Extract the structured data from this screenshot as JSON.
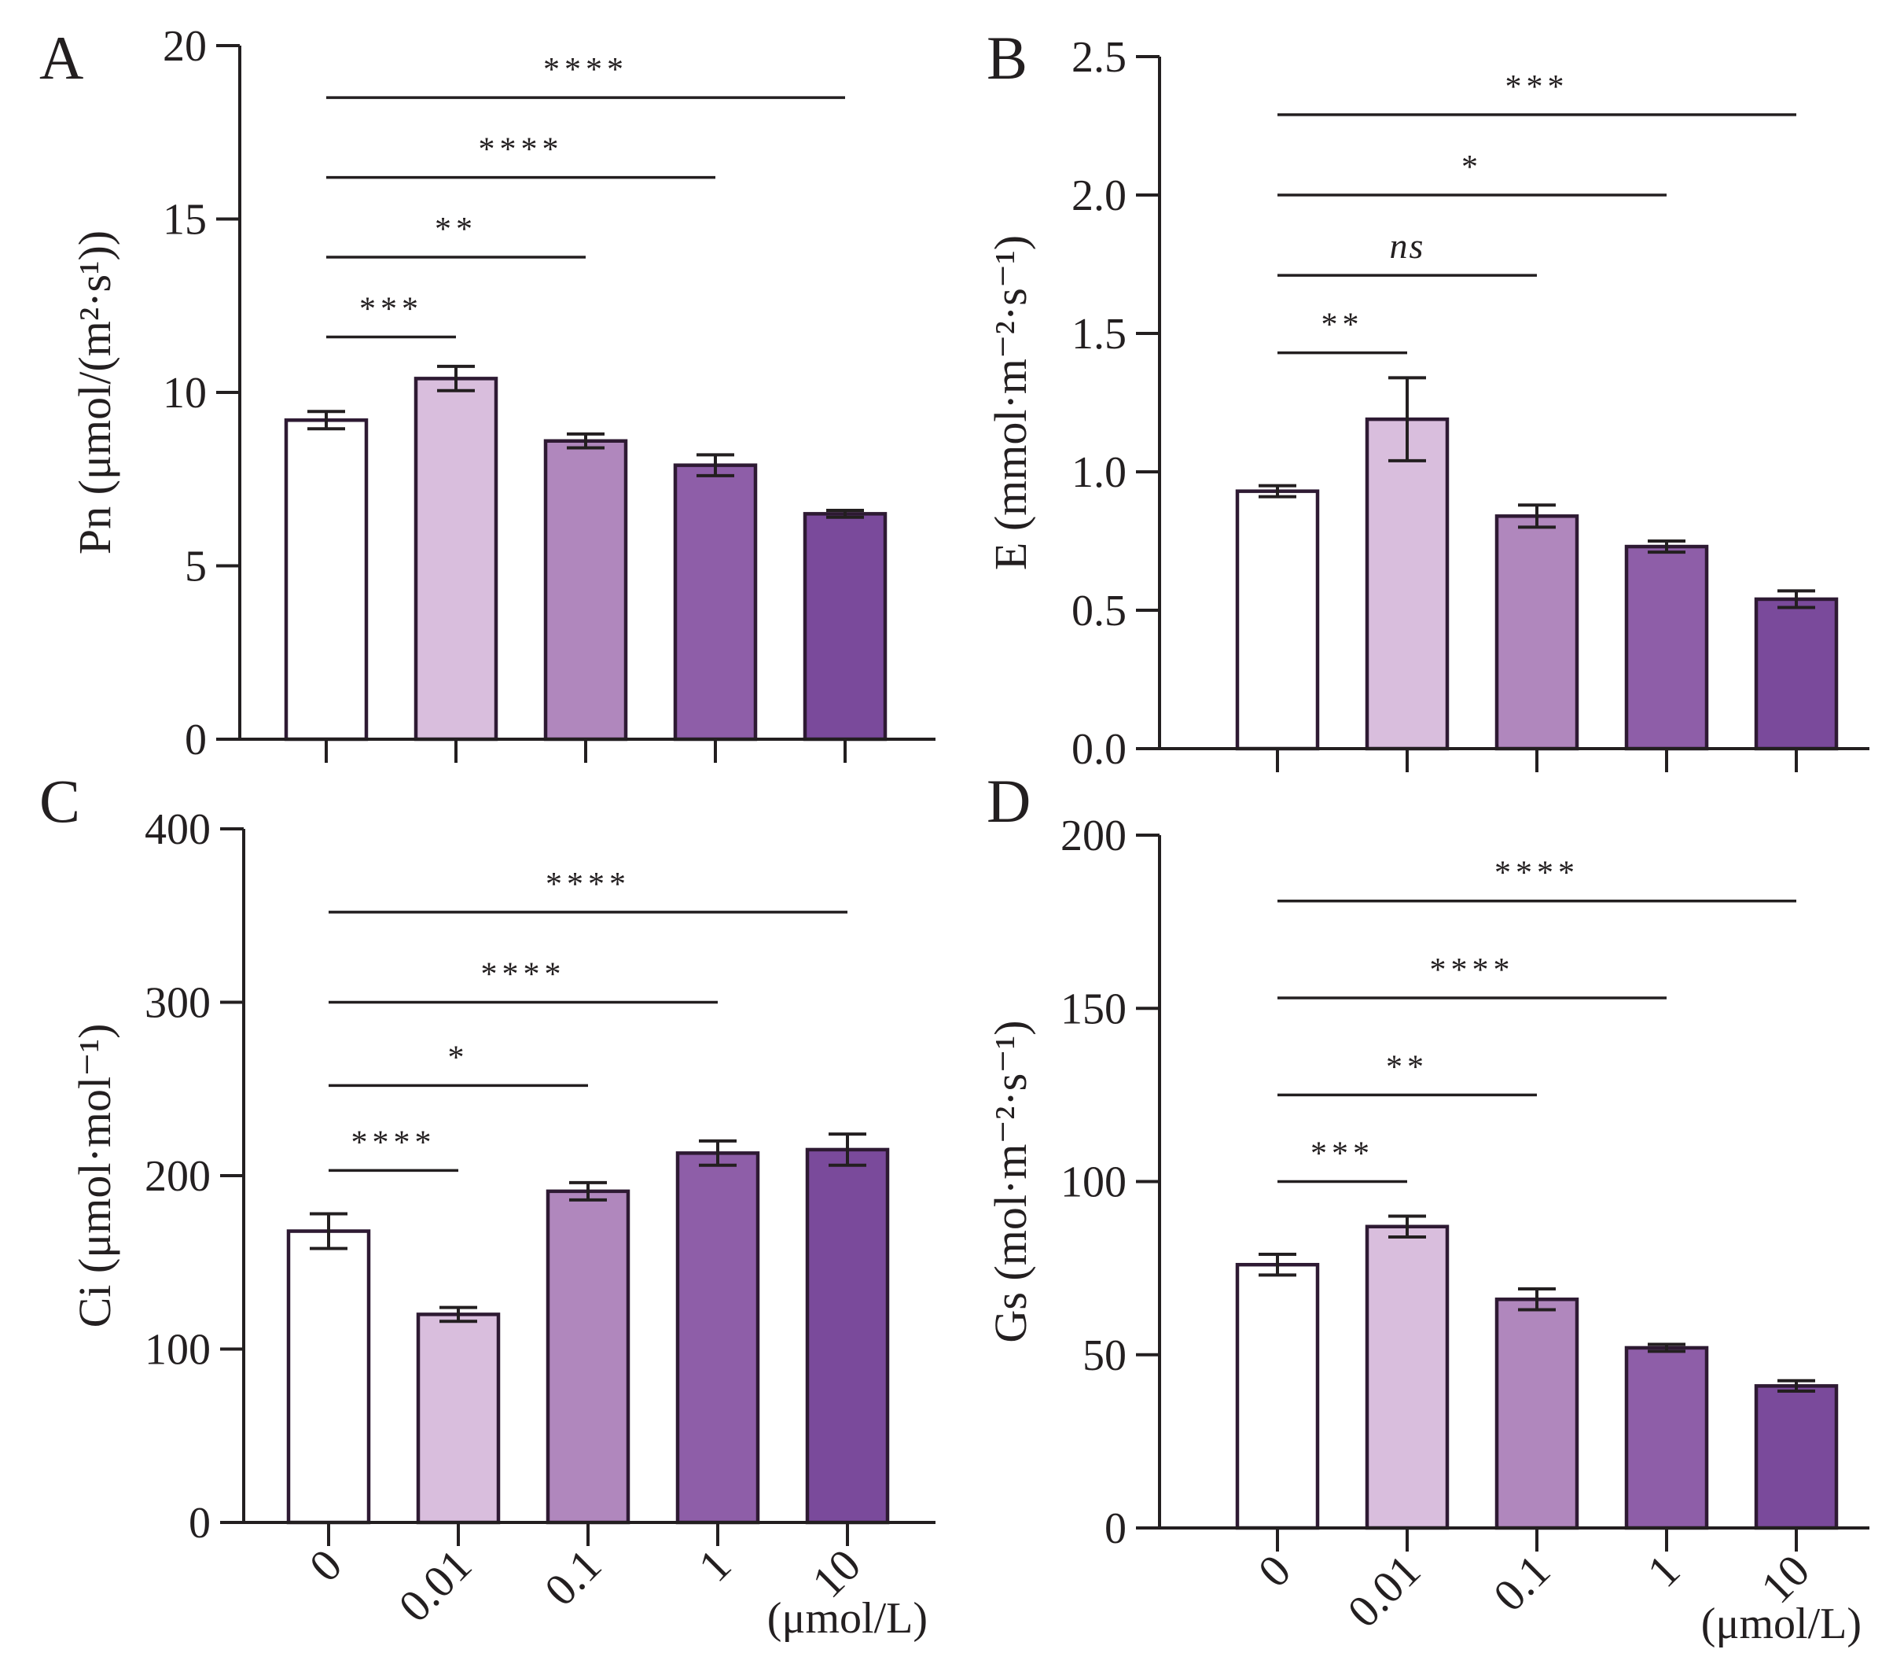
{
  "chart_data": [
    {
      "type": "bar",
      "panel": "A",
      "categories": [
        "0",
        "0.01",
        "0.1",
        "1",
        "10"
      ],
      "values": [
        9.2,
        10.4,
        8.6,
        7.9,
        6.5
      ],
      "errors": [
        0.25,
        0.35,
        0.2,
        0.3,
        0.1
      ],
      "ylabel": "Pn (μmol/(m²·s¹))",
      "ylim": [
        0,
        20
      ],
      "yticks": [
        0,
        5,
        10,
        15,
        20
      ],
      "ytick_labels": [
        "0",
        "5",
        "10",
        "15",
        "20"
      ],
      "xlabel": "",
      "show_category_labels": false,
      "significance": [
        {
          "from": 0,
          "to": 1,
          "y": 11.6,
          "label": "***"
        },
        {
          "from": 0,
          "to": 2,
          "y": 13.9,
          "label": "**"
        },
        {
          "from": 0,
          "to": 3,
          "y": 16.2,
          "label": "****"
        },
        {
          "from": 0,
          "to": 4,
          "y": 18.5,
          "label": "****"
        }
      ]
    },
    {
      "type": "bar",
      "panel": "B",
      "categories": [
        "0",
        "0.01",
        "0.1",
        "1",
        "10"
      ],
      "values": [
        0.93,
        1.19,
        0.84,
        0.73,
        0.54
      ],
      "errors": [
        0.02,
        0.15,
        0.04,
        0.02,
        0.03
      ],
      "ylabel": "E (mmol·m⁻²·s⁻¹)",
      "ylim": [
        0,
        2.5
      ],
      "yticks": [
        0,
        0.5,
        1.0,
        1.5,
        2.0,
        2.5
      ],
      "ytick_labels": [
        "0.0",
        "0.5",
        "1.0",
        "1.5",
        "2.0",
        "2.5"
      ],
      "xlabel": "",
      "show_category_labels": false,
      "significance": [
        {
          "from": 0,
          "to": 1,
          "y": 1.43,
          "label": "**"
        },
        {
          "from": 0,
          "to": 2,
          "y": 1.71,
          "label": "ns"
        },
        {
          "from": 0,
          "to": 3,
          "y": 2.0,
          "label": "*"
        },
        {
          "from": 0,
          "to": 4,
          "y": 2.29,
          "label": "***"
        }
      ]
    },
    {
      "type": "bar",
      "panel": "C",
      "categories": [
        "0",
        "0.01",
        "0.1",
        "1",
        "10"
      ],
      "values": [
        168,
        120,
        191,
        213,
        215
      ],
      "errors": [
        10,
        4,
        5,
        7,
        9
      ],
      "ylabel": "Ci (μmol·mol⁻¹)",
      "ylim": [
        0,
        400
      ],
      "yticks": [
        0,
        100,
        200,
        300,
        400
      ],
      "ytick_labels": [
        "0",
        "100",
        "200",
        "300",
        "400"
      ],
      "xlabel": "(μmol/L)",
      "show_category_labels": true,
      "significance": [
        {
          "from": 0,
          "to": 1,
          "y": 203,
          "label": "****"
        },
        {
          "from": 0,
          "to": 2,
          "y": 252,
          "label": "*"
        },
        {
          "from": 0,
          "to": 3,
          "y": 300,
          "label": "****"
        },
        {
          "from": 0,
          "to": 4,
          "y": 352,
          "label": "****"
        }
      ]
    },
    {
      "type": "bar",
      "panel": "D",
      "categories": [
        "0",
        "0.01",
        "0.1",
        "1",
        "10"
      ],
      "values": [
        76,
        87,
        66,
        52,
        41
      ],
      "errors": [
        3,
        3,
        3,
        1,
        1.5
      ],
      "ylabel": "Gs (mol·m⁻²·s⁻¹)",
      "ylim": [
        0,
        200
      ],
      "yticks": [
        0,
        50,
        100,
        150,
        200
      ],
      "ytick_labels": [
        "0",
        "50",
        "100",
        "150",
        "200"
      ],
      "xlabel": "(μmol/L)",
      "show_category_labels": true,
      "significance": [
        {
          "from": 0,
          "to": 1,
          "y": 100,
          "label": "***"
        },
        {
          "from": 0,
          "to": 2,
          "y": 125,
          "label": "**"
        },
        {
          "from": 0,
          "to": 3,
          "y": 153,
          "label": "****"
        },
        {
          "from": 0,
          "to": 4,
          "y": 181,
          "label": "****"
        }
      ]
    }
  ],
  "colors": {
    "bar_fills": [
      "#ffffff",
      "#d9bedd",
      "#b087bd",
      "#8e5ea8",
      "#7a4a9b"
    ],
    "ink": "#231f20"
  }
}
